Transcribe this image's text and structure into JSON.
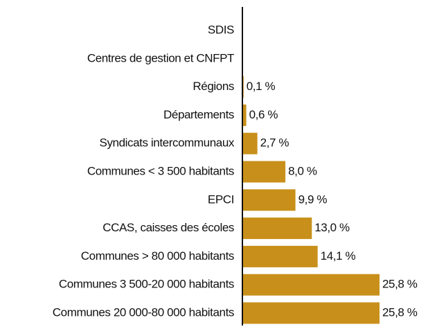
{
  "chart_data": {
    "type": "bar",
    "orientation": "horizontal",
    "color": "#c8901a",
    "categories": [
      "SDIS",
      "Centres de gestion et CNFPT",
      "Régions",
      "Départements",
      "Syndicats intercommunaux",
      "Communes < 3 500 habitants",
      "EPCI",
      "CCAS, caisses des écoles",
      "Communes > 80 000 habitants",
      "Communes 3 500-20 000 habitants",
      "Communes 20 000-80 000 habitants"
    ],
    "values": [
      null,
      null,
      0.1,
      0.6,
      2.7,
      8.0,
      9.9,
      13.0,
      14.1,
      25.8,
      25.8
    ],
    "value_labels": [
      null,
      null,
      "0,1 %",
      "0,6 %",
      "2,7 %",
      "8,0 %",
      "9,9 %",
      "13,0 %",
      "14,1 %",
      "25,8 %",
      "25,8 %"
    ]
  }
}
